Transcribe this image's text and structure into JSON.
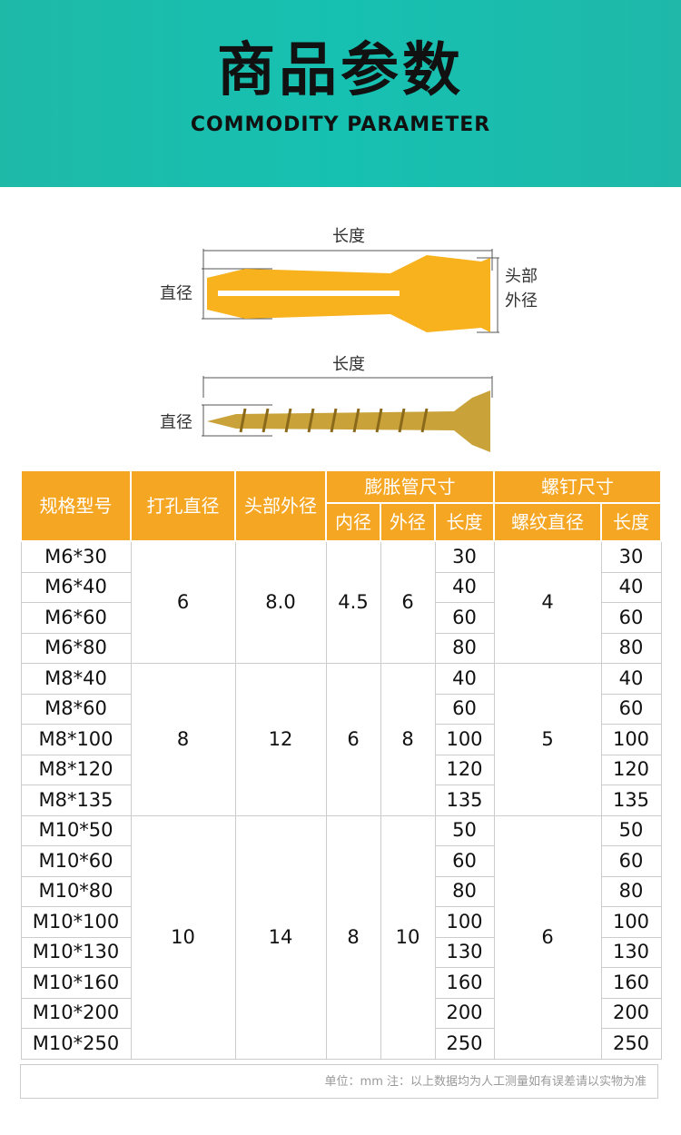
{
  "banner": {
    "title": "商品参数",
    "subtitle": "COMMODITY PARAMETER",
    "color": "#1bbcac"
  },
  "diagram": {
    "anchor_length": "长度",
    "anchor_diameter": "直径",
    "anchor_head_1": "头部",
    "anchor_head_2": "外径",
    "screw_length": "长度",
    "screw_diameter": "直径"
  },
  "table": {
    "headers": {
      "model": "规格型号",
      "drill": "打孔直径",
      "head": "头部外径",
      "tube": "膨胀管尺寸",
      "tube_inner": "内径",
      "tube_outer": "外径",
      "tube_length": "长度",
      "screw": "螺钉尺寸",
      "screw_thread": "螺纹直径",
      "screw_length": "长度"
    },
    "header_color": "#f5a623",
    "groups": [
      {
        "drill": "6",
        "head": "8.0",
        "inner": "4.5",
        "outer": "6",
        "thread": "4",
        "rows": [
          [
            "M6*30",
            "30",
            "30"
          ],
          [
            "M6*40",
            "40",
            "40"
          ],
          [
            "M6*60",
            "60",
            "60"
          ],
          [
            "M6*80",
            "80",
            "80"
          ]
        ]
      },
      {
        "drill": "8",
        "head": "12",
        "inner": "6",
        "outer": "8",
        "thread": "5",
        "rows": [
          [
            "M8*40",
            "40",
            "40"
          ],
          [
            "M8*60",
            "60",
            "60"
          ],
          [
            "M8*100",
            "100",
            "100"
          ],
          [
            "M8*120",
            "120",
            "120"
          ],
          [
            "M8*135",
            "135",
            "135"
          ]
        ]
      },
      {
        "drill": "10",
        "head": "14",
        "inner": "8",
        "outer": "10",
        "thread": "6",
        "rows": [
          [
            "M10*50",
            "50",
            "50"
          ],
          [
            "M10*60",
            "60",
            "60"
          ],
          [
            "M10*80",
            "80",
            "80"
          ],
          [
            "M10*100",
            "100",
            "100"
          ],
          [
            "M10*130",
            "130",
            "130"
          ],
          [
            "M10*160",
            "160",
            "160"
          ],
          [
            "M10*200",
            "200",
            "200"
          ],
          [
            "M10*250",
            "250",
            "250"
          ]
        ]
      }
    ]
  },
  "footer": "单位：mm  注：以上数据均为人工测量如有误差请以实物为准"
}
